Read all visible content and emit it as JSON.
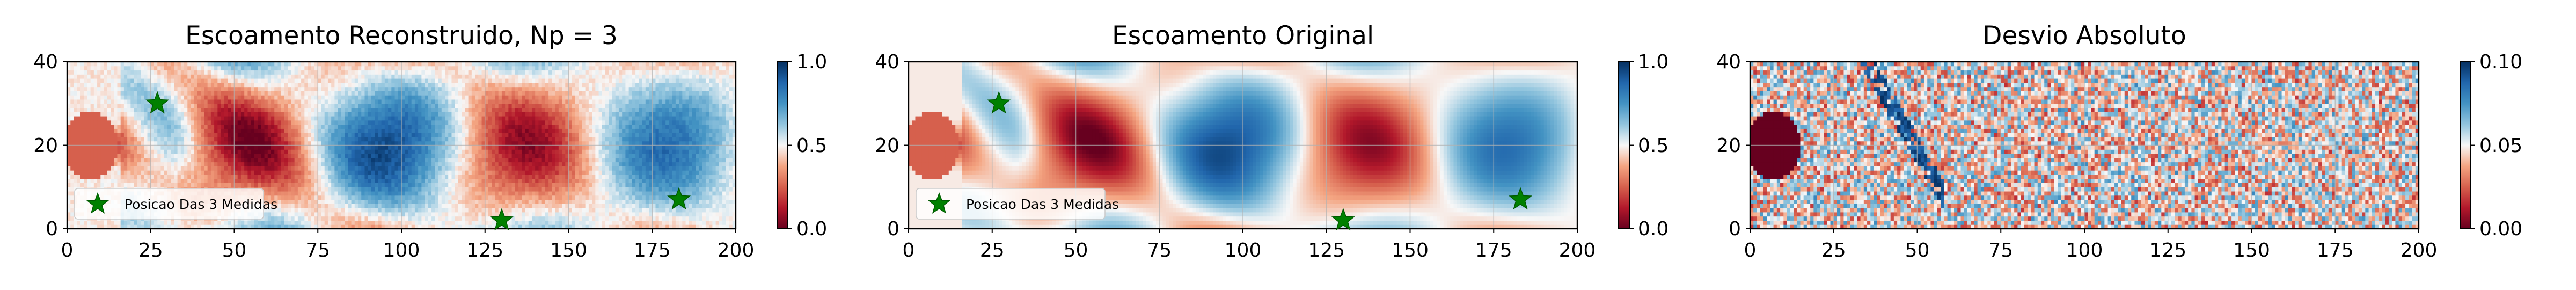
{
  "chart_data": [
    {
      "type": "heatmap",
      "field": "reconstructed",
      "title": "Escoamento Reconstruido, Np = 3",
      "xlim": [
        0,
        200
      ],
      "ylim": [
        0,
        40
      ],
      "xticks": [
        "0",
        "25",
        "50",
        "75",
        "100",
        "125",
        "150",
        "175",
        "200"
      ],
      "yticks": [
        "0",
        "20",
        "40"
      ],
      "grid": true,
      "colormap": "RdBu",
      "colorbar": {
        "range": [
          0.0,
          1.0
        ],
        "ticks": [
          "0.0",
          "0.5",
          "1.0"
        ]
      },
      "markers": [
        {
          "x": 27,
          "y": 30
        },
        {
          "x": 130,
          "y": 2
        },
        {
          "x": 183,
          "y": 7
        }
      ],
      "marker_color": "#008000",
      "legend": {
        "label": "Posicao Das 3 Medidas",
        "placement": "lower-left"
      }
    },
    {
      "type": "heatmap",
      "field": "original",
      "title": "Escoamento Original",
      "xlim": [
        0,
        200
      ],
      "ylim": [
        0,
        40
      ],
      "xticks": [
        "0",
        "25",
        "50",
        "75",
        "100",
        "125",
        "150",
        "175",
        "200"
      ],
      "yticks": [
        "0",
        "20",
        "40"
      ],
      "grid": true,
      "colormap": "RdBu",
      "colorbar": {
        "range": [
          0.0,
          1.0
        ],
        "ticks": [
          "0.0",
          "0.5",
          "1.0"
        ]
      },
      "markers": [
        {
          "x": 27,
          "y": 30
        },
        {
          "x": 130,
          "y": 2
        },
        {
          "x": 183,
          "y": 7
        }
      ],
      "marker_color": "#008000",
      "legend": {
        "label": "Posicao Das 3 Medidas",
        "placement": "lower-left"
      }
    },
    {
      "type": "heatmap",
      "field": "absolute-deviation",
      "title": "Desvio Absoluto",
      "xlim": [
        0,
        200
      ],
      "ylim": [
        0,
        40
      ],
      "xticks": [
        "0",
        "25",
        "50",
        "75",
        "100",
        "125",
        "150",
        "175",
        "200"
      ],
      "yticks": [
        "0",
        "20",
        "40"
      ],
      "grid": true,
      "colormap": "RdBu",
      "colorbar": {
        "range": [
          0.0,
          0.1
        ],
        "ticks": [
          "0.00",
          "0.05",
          "0.10"
        ]
      }
    }
  ]
}
